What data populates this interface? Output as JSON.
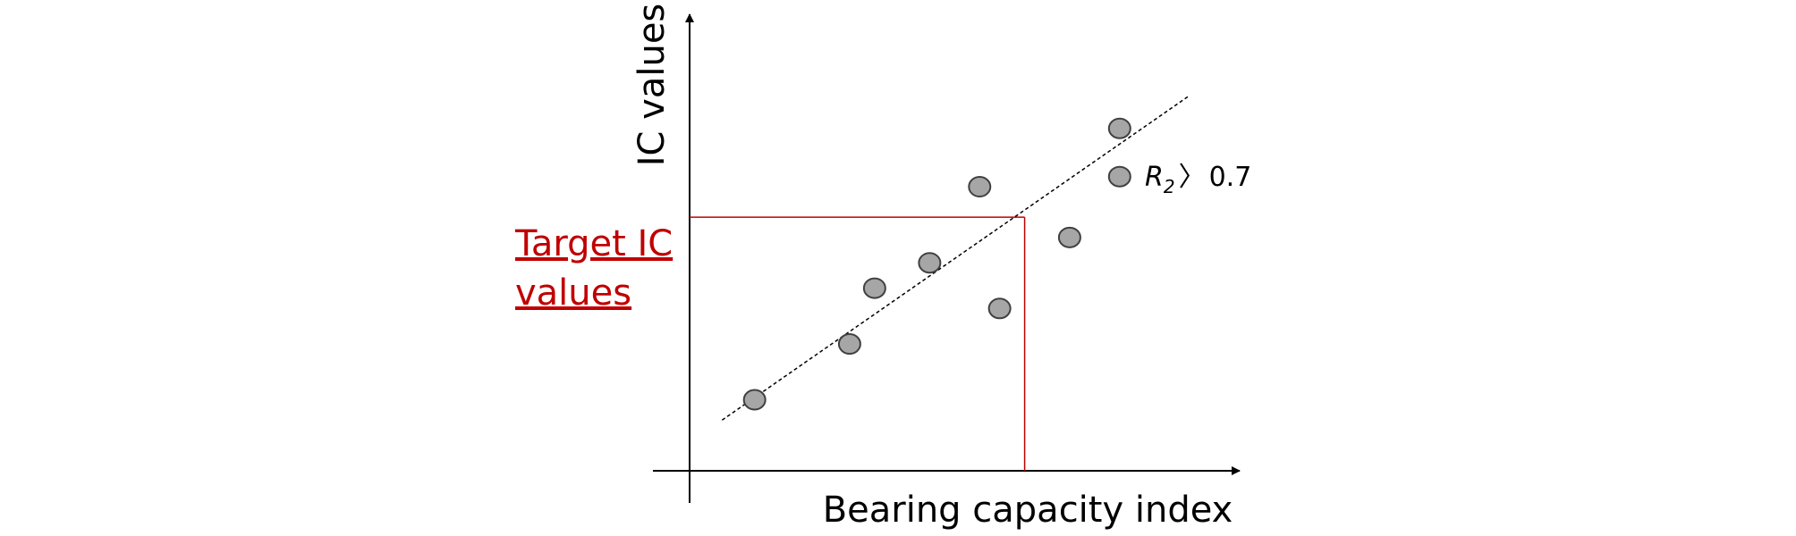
{
  "chart_data": {
    "type": "scatter",
    "xlabel": "Bearing capacity index",
    "ylabel": "IC values",
    "target_label_lines": [
      "Target IC",
      "values"
    ],
    "annotation": {
      "r_symbol": "R",
      "r_subscript": "2",
      "comparator": "〉",
      "value": "0.7"
    },
    "points": [
      {
        "x": 1.3,
        "y": 1.4
      },
      {
        "x": 3.2,
        "y": 2.5
      },
      {
        "x": 3.7,
        "y": 3.6
      },
      {
        "x": 4.8,
        "y": 4.1
      },
      {
        "x": 5.8,
        "y": 5.6
      },
      {
        "x": 6.2,
        "y": 3.2
      },
      {
        "x": 7.6,
        "y": 4.6
      },
      {
        "x": 8.6,
        "y": 5.8
      },
      {
        "x": 8.6,
        "y": 6.75
      }
    ],
    "trendline": {
      "x": [
        0.65,
        10.0
      ],
      "y": [
        1.0,
        7.4
      ]
    },
    "target": {
      "x": 6.7,
      "y": 5.0
    },
    "xlim": [
      0,
      11
    ],
    "ylim": [
      0,
      9
    ],
    "grid": false,
    "colors": {
      "point_fill": "#a6a6a6",
      "point_stroke": "#404040",
      "target": "#c00000",
      "axis": "#000000"
    }
  }
}
